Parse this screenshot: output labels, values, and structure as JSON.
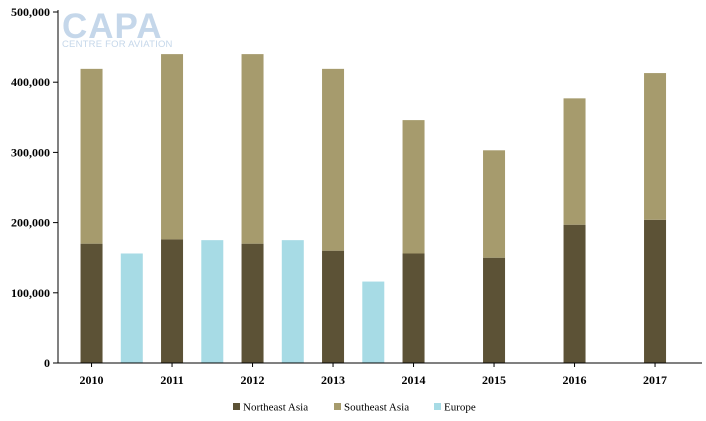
{
  "logo": {
    "name": "CAPA",
    "tagline": "CENTRE FOR AVIATION"
  },
  "chart_data": {
    "type": "bar",
    "stacked": true,
    "title": "",
    "xlabel": "",
    "ylabel": "",
    "categories": [
      "2010",
      "2011",
      "2012",
      "2013",
      "2014",
      "2015",
      "2016",
      "2017"
    ],
    "y_ticks": [
      "0",
      "100,000",
      "200,000",
      "300,000",
      "400,000",
      "500,000"
    ],
    "ylim": [
      0,
      500000
    ],
    "legend_position": "bottom",
    "grid": false,
    "stack": [
      {
        "name": "Northeast Asia",
        "color": "#5c5236",
        "values": [
          170000,
          176000,
          170000,
          160000,
          156000,
          150000,
          197000,
          204000
        ]
      },
      {
        "name": "Southeast Asia",
        "color": "#a69b6d",
        "values": [
          249000,
          264000,
          270000,
          259000,
          190000,
          153000,
          180000,
          209000
        ]
      }
    ],
    "series_between": {
      "name": "Europe",
      "color": "#a7dbe5",
      "values": [
        156000,
        175000,
        175000,
        116000
      ]
    }
  }
}
